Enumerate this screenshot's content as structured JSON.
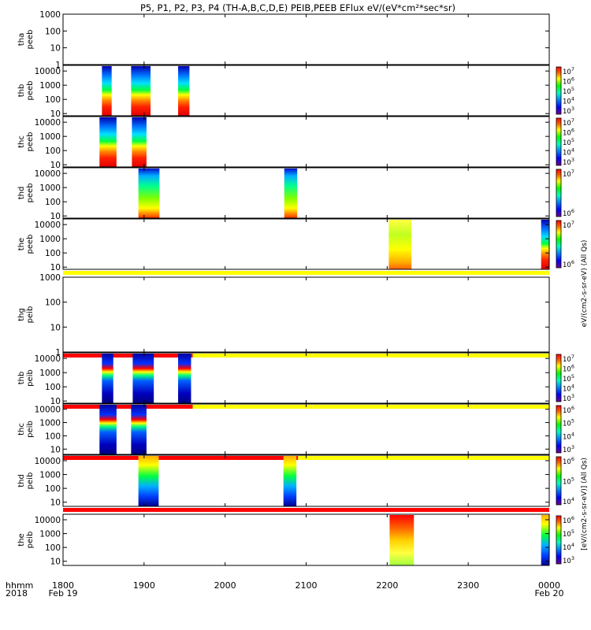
{
  "title": "P5, P1, P2, P3, P4 (TH-A,B,C,D,E) PEIB,PEEB EFlux eV/(eV*cm²*sec*sr)",
  "time_axis": {
    "label_line1": "hhmm",
    "label_line2": "2018",
    "ticks": [
      {
        "t": 1800,
        "line1": "1800",
        "line2": "Feb 19"
      },
      {
        "t": 1900,
        "line1": "1900",
        "line2": ""
      },
      {
        "t": 2000,
        "line1": "2000",
        "line2": ""
      },
      {
        "t": 2100,
        "line1": "2100",
        "line2": ""
      },
      {
        "t": 2200,
        "line1": "2200",
        "line2": ""
      },
      {
        "t": 2300,
        "line1": "2300",
        "line2": ""
      },
      {
        "t": 2400,
        "line1": "0000",
        "line2": "Feb 20"
      }
    ],
    "t_range": [
      1800,
      2400
    ]
  },
  "colorbar_label_electron": "eV/(cm2-s-sr-eV) (All Qs)",
  "colorbar_label_ion": "[eV/(cm2-s-sr-eV)] (All Qs)",
  "colors": {
    "flag_red": "#ff0000",
    "flag_yellow": "#ffff00",
    "colorscale": [
      "#800080",
      "#0000ff",
      "#00b0ff",
      "#00ff80",
      "#00ff00",
      "#ffff00",
      "#ff8000",
      "#ff0000",
      "#800000"
    ]
  },
  "chart_data": [
    {
      "type": "heatmap",
      "probe": "tha",
      "product": "peeb",
      "ylabel_line1": "tha",
      "ylabel_line2": "peeb",
      "yscale": "log",
      "ylim": [
        1,
        1000
      ],
      "yticks": [
        {
          "v": 1,
          "label": "1"
        },
        {
          "v": 10,
          "label": "10"
        },
        {
          "v": 100,
          "label": "100"
        },
        {
          "v": 1000,
          "label": "1000"
        }
      ],
      "colorbar": false,
      "colorbar_ticks": [],
      "blocks": [],
      "flag_below": []
    },
    {
      "type": "heatmap",
      "probe": "thb",
      "product": "peeb",
      "ylabel_line1": "thb",
      "ylabel_line2": "peeb",
      "yscale": "log",
      "ylim": [
        7,
        25000
      ],
      "yticks": [
        {
          "v": 10,
          "label": "10"
        },
        {
          "v": 100,
          "label": "100"
        },
        {
          "v": 1000,
          "label": "1000"
        },
        {
          "v": 10000,
          "label": "10000"
        }
      ],
      "colorbar": true,
      "colorbar_ticks": [
        {
          "base": "10",
          "exp": "7"
        },
        {
          "base": "10",
          "exp": "6"
        },
        {
          "base": "10",
          "exp": "5"
        },
        {
          "base": "10",
          "exp": "4"
        },
        {
          "base": "10",
          "exp": "3"
        }
      ],
      "blocks": [
        {
          "t0": 1848,
          "t1": 1860,
          "profile": "electron_hot"
        },
        {
          "t0": 1884,
          "t1": 1908,
          "profile": "electron_hot"
        },
        {
          "t0": 1942,
          "t1": 1956,
          "profile": "electron_hot"
        }
      ],
      "flag_below": []
    },
    {
      "type": "heatmap",
      "probe": "thc",
      "product": "peeb",
      "ylabel_line1": "thc",
      "ylabel_line2": "peeb",
      "yscale": "log",
      "ylim": [
        7,
        25000
      ],
      "yticks": [
        {
          "v": 10,
          "label": "10"
        },
        {
          "v": 100,
          "label": "100"
        },
        {
          "v": 1000,
          "label": "1000"
        },
        {
          "v": 10000,
          "label": "10000"
        }
      ],
      "colorbar": true,
      "colorbar_ticks": [
        {
          "base": "10",
          "exp": "7"
        },
        {
          "base": "10",
          "exp": "6"
        },
        {
          "base": "10",
          "exp": "5"
        },
        {
          "base": "10",
          "exp": "4"
        },
        {
          "base": "10",
          "exp": "3"
        }
      ],
      "blocks": [
        {
          "t0": 1845,
          "t1": 1866,
          "profile": "electron_hot"
        },
        {
          "t0": 1885,
          "t1": 1903,
          "profile": "electron_hot"
        }
      ],
      "flag_below": []
    },
    {
      "type": "heatmap",
      "probe": "thd",
      "product": "peeb",
      "ylabel_line1": "thd",
      "ylabel_line2": "peeb",
      "yscale": "log",
      "ylim": [
        7,
        25000
      ],
      "yticks": [
        {
          "v": 10,
          "label": "10"
        },
        {
          "v": 100,
          "label": "100"
        },
        {
          "v": 1000,
          "label": "1000"
        },
        {
          "v": 10000,
          "label": "10000"
        }
      ],
      "colorbar": true,
      "colorbar_ticks": [
        {
          "base": "10",
          "exp": "7"
        },
        {
          "base": "10",
          "exp": "6"
        }
      ],
      "blocks": [
        {
          "t0": 1893,
          "t1": 1919,
          "profile": "electron_warm"
        },
        {
          "t0": 2073,
          "t1": 2089,
          "profile": "electron_warm"
        }
      ],
      "flag_below": []
    },
    {
      "type": "heatmap",
      "probe": "the",
      "product": "peeb",
      "ylabel_line1": "the",
      "ylabel_line2": "peeb",
      "yscale": "log",
      "ylim": [
        7,
        25000
      ],
      "yticks": [
        {
          "v": 10,
          "label": "10"
        },
        {
          "v": 100,
          "label": "100"
        },
        {
          "v": 1000,
          "label": "1000"
        },
        {
          "v": 10000,
          "label": "10000"
        }
      ],
      "colorbar": true,
      "colorbar_ticks": [
        {
          "base": "10",
          "exp": "7"
        },
        {
          "base": "10",
          "exp": "6"
        }
      ],
      "blocks": [
        {
          "t0": 2202,
          "t1": 2230,
          "profile": "electron_mid"
        },
        {
          "t0": 2390,
          "t1": 2400,
          "profile": "electron_hot"
        }
      ],
      "flag_below": [
        {
          "t0": 1800,
          "t1": 2400,
          "color": "yellow"
        }
      ]
    },
    {
      "type": "heatmap",
      "probe": "thg",
      "product": "peib",
      "ylabel_line1": "thg",
      "ylabel_line2": "peib",
      "yscale": "log",
      "ylim": [
        1,
        1000
      ],
      "yticks": [
        {
          "v": 1,
          "label": "1"
        },
        {
          "v": 10,
          "label": "10"
        },
        {
          "v": 100,
          "label": "100"
        },
        {
          "v": 1000,
          "label": "1000"
        }
      ],
      "colorbar": false,
      "colorbar_ticks": [],
      "blocks": [],
      "flag_below": [
        {
          "t0": 1800,
          "t1": 1960,
          "color": "red"
        },
        {
          "t0": 1960,
          "t1": 2400,
          "color": "yellow"
        }
      ]
    },
    {
      "type": "heatmap",
      "probe": "thb",
      "product": "peib",
      "ylabel_line1": "thb",
      "ylabel_line2": "peib",
      "yscale": "log",
      "ylim": [
        7,
        25000
      ],
      "yticks": [
        {
          "v": 10,
          "label": "10"
        },
        {
          "v": 100,
          "label": "100"
        },
        {
          "v": 1000,
          "label": "1000"
        },
        {
          "v": 10000,
          "label": "10000"
        }
      ],
      "colorbar": true,
      "colorbar_ticks": [
        {
          "base": "10",
          "exp": "7"
        },
        {
          "base": "10",
          "exp": "6"
        },
        {
          "base": "10",
          "exp": "5"
        },
        {
          "base": "10",
          "exp": "4"
        },
        {
          "base": "10",
          "exp": "3"
        }
      ],
      "blocks": [
        {
          "t0": 1848,
          "t1": 1862,
          "profile": "ion"
        },
        {
          "t0": 1886,
          "t1": 1912,
          "profile": "ion"
        },
        {
          "t0": 1942,
          "t1": 1958,
          "profile": "ion"
        }
      ],
      "flag_below": [
        {
          "t0": 1800,
          "t1": 1960,
          "color": "red"
        },
        {
          "t0": 1960,
          "t1": 2400,
          "color": "yellow"
        }
      ]
    },
    {
      "type": "heatmap",
      "probe": "thc",
      "product": "peib",
      "ylabel_line1": "thc",
      "ylabel_line2": "peib",
      "yscale": "log",
      "ylim": [
        4,
        25000
      ],
      "yticks": [
        {
          "v": 10,
          "label": "10"
        },
        {
          "v": 100,
          "label": "100"
        },
        {
          "v": 1000,
          "label": "1000"
        },
        {
          "v": 10000,
          "label": "10000"
        }
      ],
      "colorbar": true,
      "colorbar_ticks": [
        {
          "base": "10",
          "exp": "6"
        },
        {
          "base": "10",
          "exp": "5"
        },
        {
          "base": "10",
          "exp": "4"
        },
        {
          "base": "10",
          "exp": "3"
        }
      ],
      "blocks": [
        {
          "t0": 1845,
          "t1": 1866,
          "profile": "ion"
        },
        {
          "t0": 1884,
          "t1": 1903,
          "profile": "ion"
        }
      ],
      "flag_below": [
        {
          "t0": 1800,
          "t1": 2090,
          "color": "red"
        },
        {
          "t0": 2090,
          "t1": 2400,
          "color": "yellow"
        }
      ]
    },
    {
      "type": "heatmap",
      "probe": "thd",
      "product": "peib",
      "ylabel_line1": "thd",
      "ylabel_line2": "peib",
      "yscale": "log",
      "ylim": [
        5,
        25000
      ],
      "yticks": [
        {
          "v": 10,
          "label": "10"
        },
        {
          "v": 100,
          "label": "100"
        },
        {
          "v": 1000,
          "label": "1000"
        },
        {
          "v": 10000,
          "label": "10000"
        }
      ],
      "colorbar": true,
      "colorbar_ticks": [
        {
          "base": "10",
          "exp": "6"
        },
        {
          "base": "10",
          "exp": "5"
        },
        {
          "base": "10",
          "exp": "4"
        }
      ],
      "blocks": [
        {
          "t0": 1893,
          "t1": 1918,
          "profile": "ion_warm"
        },
        {
          "t0": 2072,
          "t1": 2088,
          "profile": "ion_warm"
        }
      ],
      "flag_below": [
        {
          "t0": 1800,
          "t1": 2400,
          "color": "red"
        }
      ]
    },
    {
      "type": "heatmap",
      "probe": "the",
      "product": "peib",
      "ylabel_line1": "the",
      "ylabel_line2": "peib",
      "yscale": "log",
      "ylim": [
        5,
        25000
      ],
      "yticks": [
        {
          "v": 10,
          "label": "10"
        },
        {
          "v": 100,
          "label": "100"
        },
        {
          "v": 1000,
          "label": "1000"
        },
        {
          "v": 10000,
          "label": "10000"
        }
      ],
      "colorbar": true,
      "colorbar_ticks": [
        {
          "base": "10",
          "exp": "6"
        },
        {
          "base": "10",
          "exp": "5"
        },
        {
          "base": "10",
          "exp": "4"
        },
        {
          "base": "10",
          "exp": "3"
        }
      ],
      "blocks": [
        {
          "t0": 2203,
          "t1": 2233,
          "profile": "ion_hot"
        },
        {
          "t0": 2390,
          "t1": 2400,
          "profile": "ion_warm"
        }
      ],
      "flag_below": []
    }
  ]
}
